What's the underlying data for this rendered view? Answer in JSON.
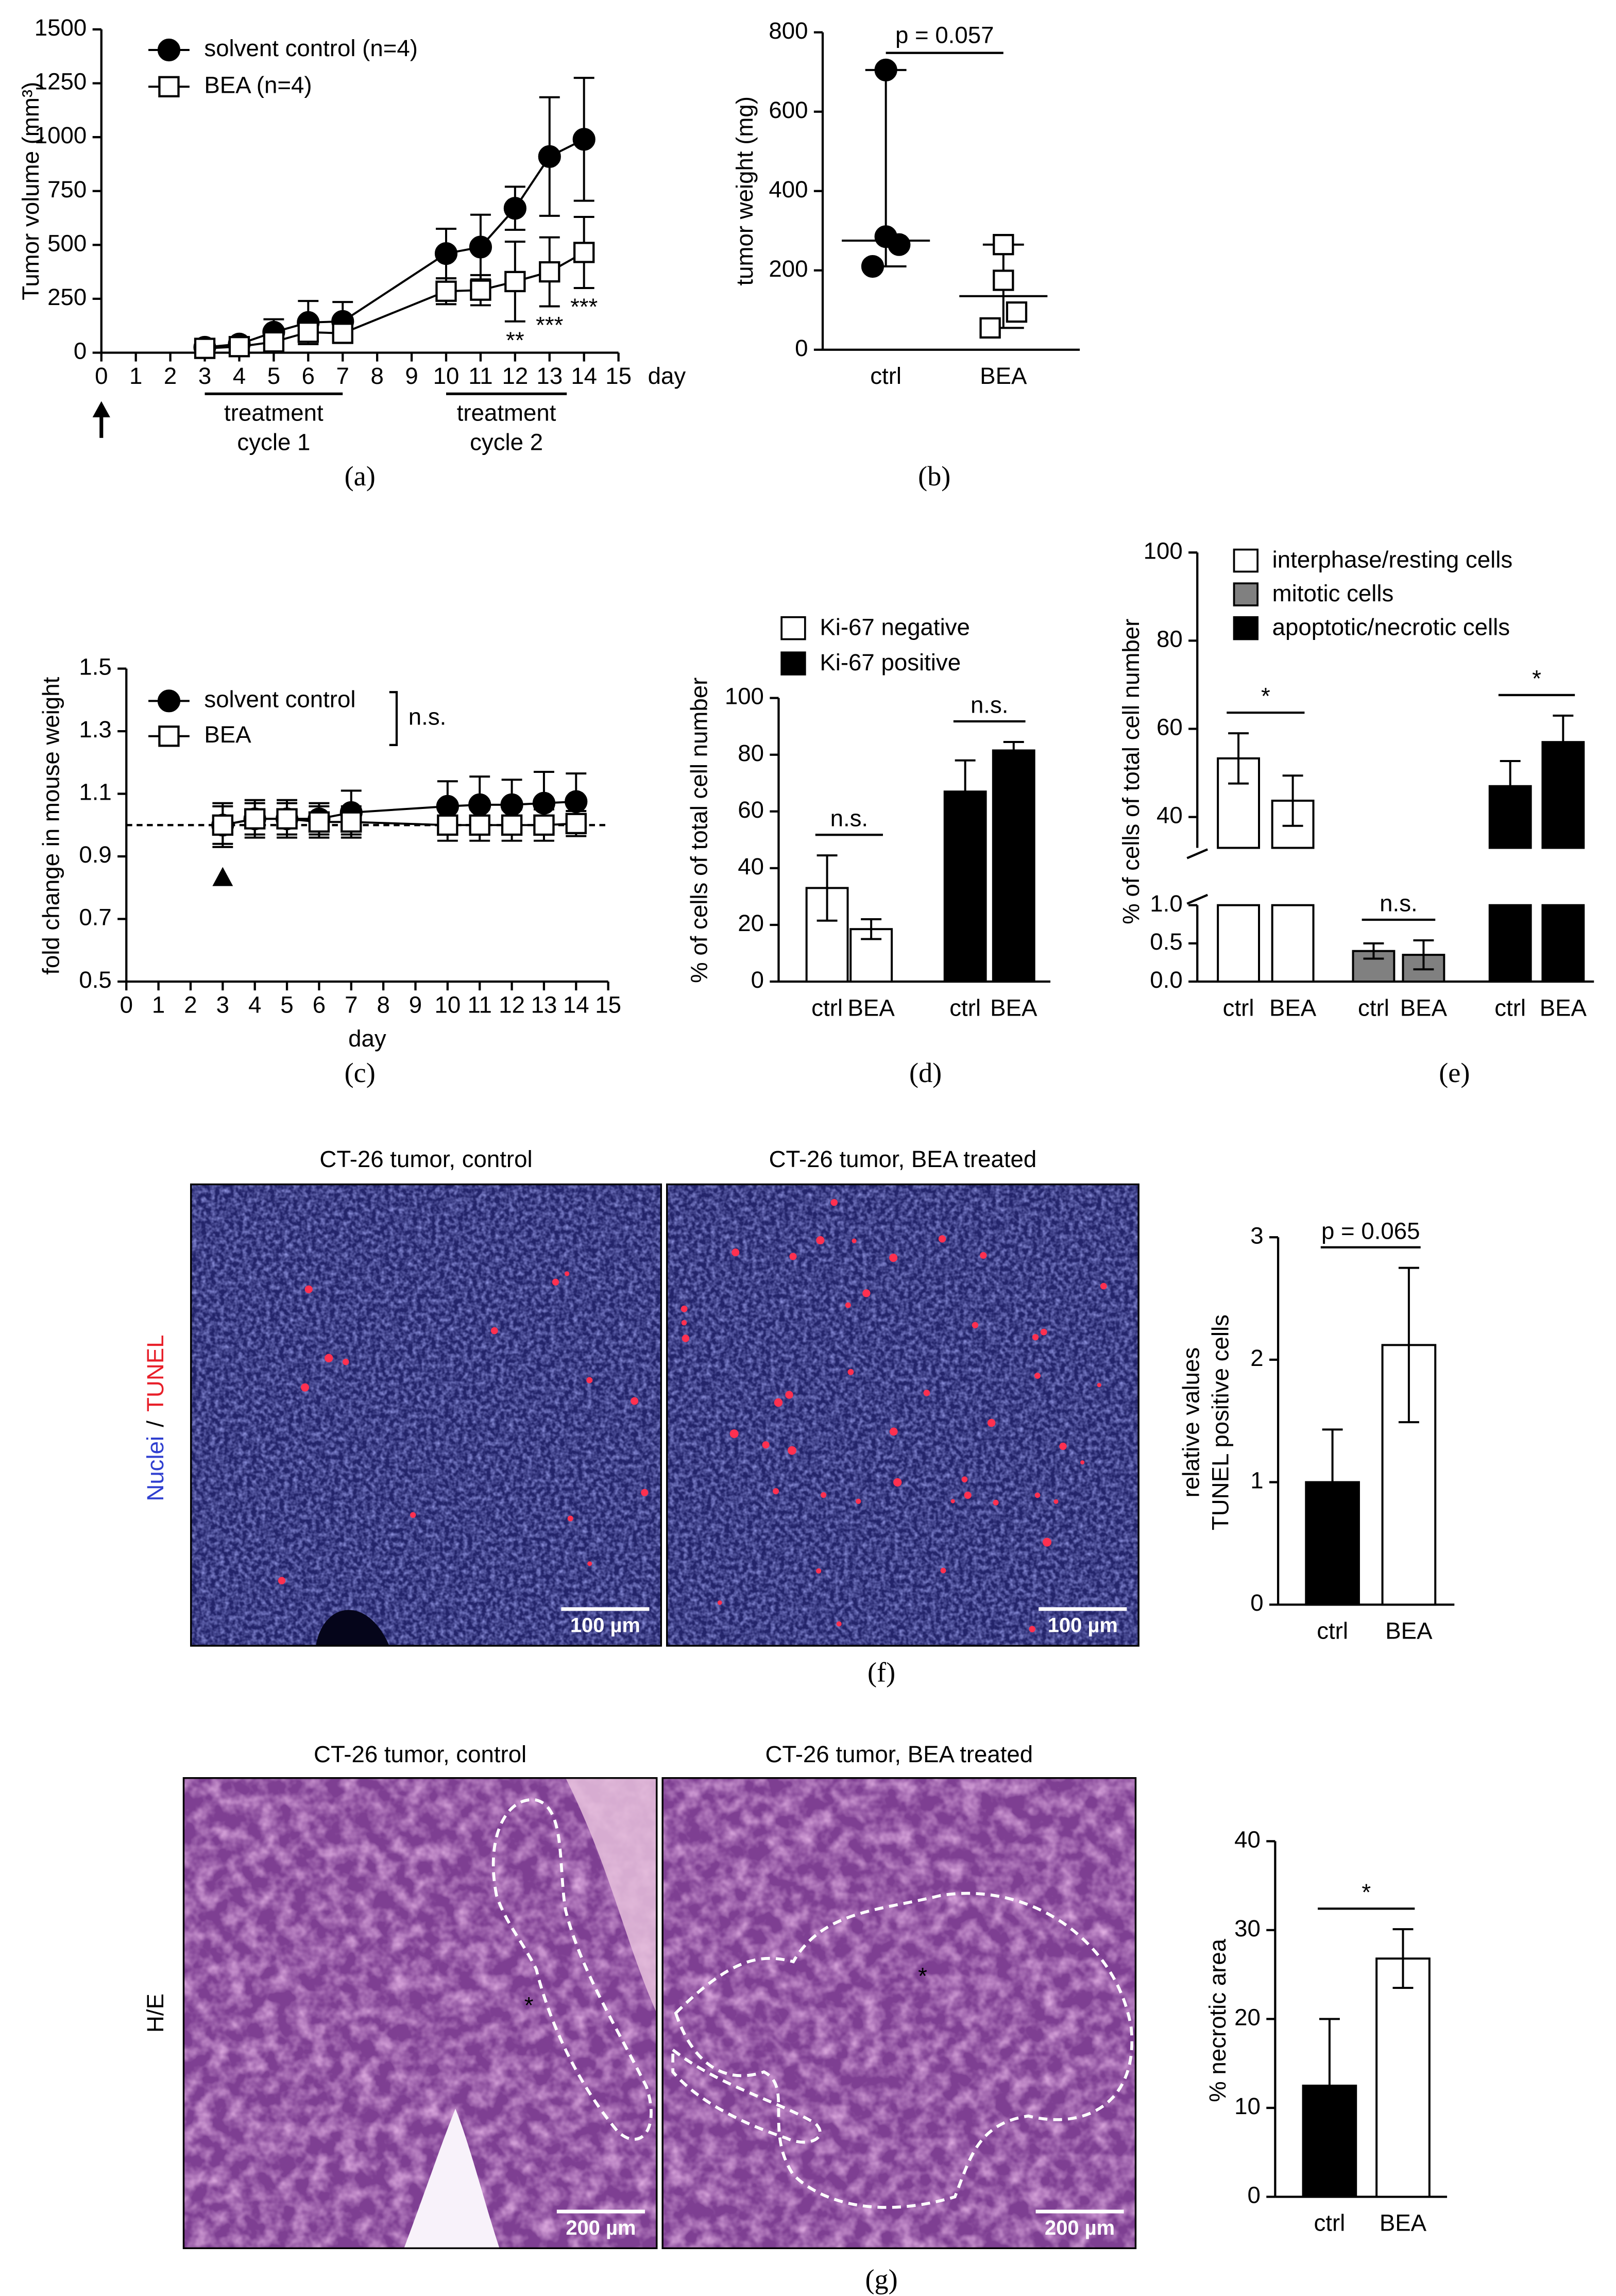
{
  "figure": {
    "micrographs": [
      {
        "row_label": [
          "Nuclei",
          "/",
          "TUNEL"
        ],
        "row_label_colors": [
          "#2f3fd0",
          "#000000",
          "#e8202a"
        ],
        "titles": [
          "CT-26 tumor, control",
          "CT-26 tumor, BEA treated"
        ],
        "scale_bar": "100 µm"
      },
      {
        "row_label": [
          "H/E"
        ],
        "row_label_colors": [
          "#000000"
        ],
        "titles": [
          "CT-26 tumor, control",
          "CT-26 tumor, BEA treated"
        ],
        "scale_bar": "200 µm",
        "region_label": "*"
      }
    ]
  },
  "chart_data": [
    {
      "type": "line",
      "panel": "(a)",
      "ylabel": "Tumor volume (mm³)",
      "xlabel": "day",
      "x": [
        3,
        4,
        5,
        6,
        7,
        10,
        11,
        12,
        13,
        14
      ],
      "xlim": [
        0,
        15
      ],
      "xticks": [
        0,
        1,
        2,
        3,
        4,
        5,
        6,
        7,
        8,
        9,
        10,
        11,
        12,
        13,
        14,
        15
      ],
      "ylim": [
        0,
        1500
      ],
      "yticks": [
        0,
        250,
        500,
        750,
        1000,
        1250,
        1500
      ],
      "arrow_day": 0,
      "series": [
        {
          "name": "solvent control (n=4)",
          "color": "#000000",
          "marker": "circle",
          "filled": true,
          "values": [
            25,
            40,
            95,
            140,
            145,
            460,
            490,
            670,
            910,
            990
          ],
          "errors": [
            12,
            20,
            60,
            100,
            90,
            115,
            150,
            100,
            275,
            285
          ]
        },
        {
          "name": "BEA (n=4)",
          "color": "#000000",
          "marker": "square",
          "filled": false,
          "values": [
            20,
            28,
            50,
            95,
            90,
            285,
            290,
            330,
            375,
            465
          ],
          "errors": [
            10,
            15,
            35,
            55,
            45,
            60,
            70,
            185,
            160,
            165
          ],
          "significance": [
            null,
            null,
            null,
            null,
            null,
            null,
            null,
            "**",
            "***",
            "***"
          ]
        }
      ],
      "treatment_cycles": [
        {
          "label": [
            "treatment",
            "cycle 1"
          ],
          "x": [
            3,
            7
          ]
        },
        {
          "label": [
            "treatment",
            "cycle 2"
          ],
          "x": [
            10,
            13.5
          ]
        }
      ]
    },
    {
      "type": "dot",
      "panel": "(b)",
      "ylabel": "tumor weight (mg)",
      "categories": [
        "ctrl",
        "BEA"
      ],
      "color": "#000000",
      "groups": [
        {
          "values": [
            705,
            285,
            265,
            210
          ],
          "median": 275,
          "marker": "circle",
          "filled": true
        },
        {
          "values": [
            265,
            175,
            95,
            55
          ],
          "median": 135,
          "marker": "square",
          "filled": false
        }
      ],
      "ylim": [
        0,
        800
      ],
      "yticks": [
        0,
        200,
        400,
        600,
        800
      ],
      "comparison": "p = 0.057"
    },
    {
      "type": "line",
      "panel": "(c)",
      "ylabel": "fold change in mouse weight",
      "xlabel": "day",
      "x": [
        3,
        4,
        5,
        6,
        7,
        10,
        11,
        12,
        13,
        14
      ],
      "xlim": [
        0,
        15
      ],
      "xticks": [
        0,
        1,
        2,
        3,
        4,
        5,
        6,
        7,
        8,
        9,
        10,
        11,
        12,
        13,
        14,
        15
      ],
      "ylim": [
        0.5,
        1.5
      ],
      "yticks": [
        0.5,
        0.7,
        0.9,
        1.1,
        1.3,
        1.5
      ],
      "reference_line": 1,
      "arrow_day": 3,
      "legend_annotation": "n.s.",
      "series": [
        {
          "name": "solvent control",
          "color": "#000000",
          "marker": "circle",
          "filled": true,
          "values": [
            1.0,
            1.02,
            1.02,
            1.02,
            1.04,
            1.06,
            1.065,
            1.065,
            1.07,
            1.075
          ],
          "errors": [
            0.06,
            0.05,
            0.05,
            0.05,
            0.07,
            0.08,
            0.09,
            0.08,
            0.1,
            0.09
          ]
        },
        {
          "name": "BEA",
          "color": "#000000",
          "marker": "square",
          "filled": false,
          "values": [
            1.0,
            1.02,
            1.02,
            1.01,
            1.01,
            1.0,
            1.0,
            1.0,
            1.0,
            1.005
          ],
          "errors": [
            0.07,
            0.06,
            0.06,
            0.05,
            0.05,
            0.05,
            0.05,
            0.05,
            0.05,
            0.04
          ]
        }
      ]
    },
    {
      "type": "bar",
      "panel": "(d)",
      "ylabel": "% of cells of total cell number",
      "categories": [
        "ctrl",
        "BEA",
        "ctrl",
        "BEA"
      ],
      "ylim": [
        0,
        100
      ],
      "yticks": [
        0,
        20,
        40,
        60,
        80,
        100
      ],
      "series": [
        {
          "name": "Ki-67 negative",
          "color": "#ffffff",
          "values": [
            33,
            18.5,
            null,
            null
          ],
          "errors": [
            11.5,
            3.5,
            null,
            null
          ],
          "comparison": "n.s."
        },
        {
          "name": "Ki-67 positive",
          "color": "#000000",
          "values": [
            null,
            null,
            67,
            81.5
          ],
          "errors": [
            null,
            null,
            11,
            3
          ],
          "comparison": "n.s."
        }
      ]
    },
    {
      "type": "bar",
      "panel": "(e)",
      "ylabel": "% of cells of total cell number",
      "categories": [
        "ctrl",
        "BEA",
        "ctrl",
        "BEA",
        "ctrl",
        "BEA"
      ],
      "segments": [
        {
          "ylim": [
            0,
            1
          ],
          "yticks": [
            {
              "value": 0,
              "label": "0.0"
            },
            0.5,
            {
              "value": 1,
              "label": "1.0"
            }
          ]
        },
        {
          "ylim": [
            33,
            100
          ],
          "yticks": [
            40,
            60,
            80,
            100
          ]
        }
      ],
      "series": [
        {
          "name": "interphase/resting cells",
          "color": "#ffffff",
          "values": [
            53.3,
            43.7,
            null,
            null,
            null,
            null
          ],
          "errors": [
            5.7,
            5.7,
            null,
            null,
            null,
            null
          ],
          "comparison": "*"
        },
        {
          "name": "mitotic cells",
          "color": "#808080",
          "values": [
            null,
            null,
            0.4,
            0.35,
            null,
            null
          ],
          "errors": [
            null,
            null,
            0.1,
            0.19,
            null,
            null
          ],
          "comparison": "n.s."
        },
        {
          "name": "apoptotic/necrotic cells",
          "color": "#000000",
          "values": [
            null,
            null,
            null,
            null,
            47,
            57
          ],
          "errors": [
            null,
            null,
            null,
            null,
            5.7,
            6
          ],
          "comparison": "*"
        }
      ]
    },
    {
      "type": "bar",
      "panel": "(f)",
      "ylabel": [
        "relative values",
        "TUNEL positive cells"
      ],
      "categories": [
        "ctrl",
        "BEA"
      ],
      "values": [
        1.0,
        2.12
      ],
      "errors": [
        0.43,
        0.63
      ],
      "colors": [
        "#000000",
        "#ffffff"
      ],
      "ylim": [
        0,
        3
      ],
      "yticks": [
        0,
        1,
        2,
        3
      ],
      "comparison": "p = 0.065"
    },
    {
      "type": "bar",
      "panel": "(g)",
      "ylabel": "% necrotic area",
      "categories": [
        "ctrl",
        "BEA"
      ],
      "values": [
        12.5,
        26.8
      ],
      "errors": [
        7.5,
        3.3
      ],
      "colors": [
        "#000000",
        "#ffffff"
      ],
      "ylim": [
        0,
        40
      ],
      "yticks": [
        0,
        10,
        20,
        30,
        40
      ],
      "comparison": "*"
    }
  ]
}
